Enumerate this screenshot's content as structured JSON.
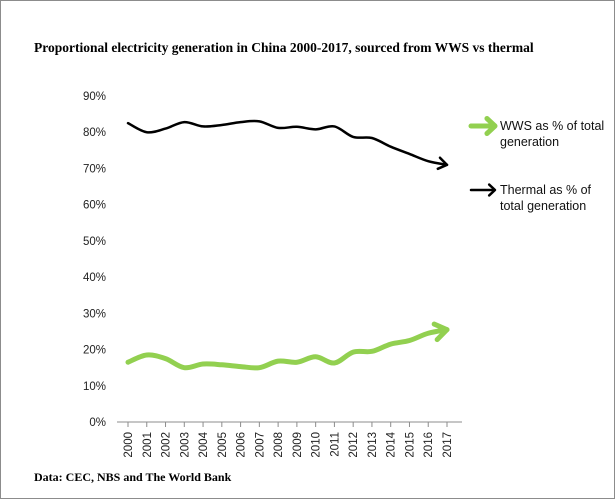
{
  "chart_data": {
    "type": "line",
    "title": "Proportional electricity generation in China 2000-2017, sourced from WWS vs thermal",
    "source": "Data: CEC, NBS and The World Bank",
    "xlabel": "",
    "ylabel": "",
    "x": [
      "2000",
      "2001",
      "2002",
      "2003",
      "2004",
      "2005",
      "2006",
      "2007",
      "2008",
      "2009",
      "2010",
      "2011",
      "2012",
      "2013",
      "2014",
      "2015",
      "2016",
      "2017"
    ],
    "y_ticks": [
      "0%",
      "10%",
      "20%",
      "30%",
      "40%",
      "50%",
      "60%",
      "70%",
      "80%",
      "90%"
    ],
    "ylim": [
      0,
      90
    ],
    "grid": false,
    "legend_position": "right",
    "series": [
      {
        "name_lines": [
          "WWS as % of total",
          "generation"
        ],
        "color": "#92d050",
        "values": [
          16.5,
          18.5,
          17.5,
          15.0,
          16.0,
          15.8,
          15.3,
          15.0,
          16.8,
          16.5,
          18.0,
          16.3,
          19.3,
          19.5,
          21.5,
          22.5,
          24.5,
          25.5
        ]
      },
      {
        "name_lines": [
          "Thermal as % of",
          "total generation"
        ],
        "color": "#000000",
        "values": [
          82.5,
          80.0,
          81.0,
          82.8,
          81.6,
          82.0,
          82.8,
          83.0,
          81.2,
          81.5,
          80.8,
          81.6,
          78.7,
          78.4,
          76.0,
          74.0,
          72.0,
          71.0
        ]
      }
    ]
  }
}
